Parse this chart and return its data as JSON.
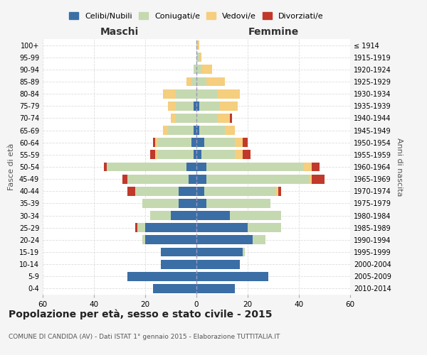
{
  "age_groups": [
    "0-4",
    "5-9",
    "10-14",
    "15-19",
    "20-24",
    "25-29",
    "30-34",
    "35-39",
    "40-44",
    "45-49",
    "50-54",
    "55-59",
    "60-64",
    "65-69",
    "70-74",
    "75-79",
    "80-84",
    "85-89",
    "90-94",
    "95-99",
    "100+"
  ],
  "birth_years": [
    "2010-2014",
    "2005-2009",
    "2000-2004",
    "1995-1999",
    "1990-1994",
    "1985-1989",
    "1980-1984",
    "1975-1979",
    "1970-1974",
    "1965-1969",
    "1960-1964",
    "1955-1959",
    "1950-1954",
    "1945-1949",
    "1940-1944",
    "1935-1939",
    "1930-1934",
    "1925-1929",
    "1920-1924",
    "1915-1919",
    "≤ 1914"
  ],
  "colors": {
    "celibi": "#3A6EA5",
    "coniugati": "#C5D9B0",
    "vedovi": "#F5CE7E",
    "divorziati": "#C0392B"
  },
  "males": {
    "celibi": [
      17,
      27,
      14,
      14,
      20,
      20,
      10,
      7,
      7,
      3,
      4,
      1,
      2,
      1,
      0,
      1,
      0,
      0,
      0,
      0,
      0
    ],
    "coniugati": [
      0,
      0,
      0,
      0,
      1,
      3,
      8,
      14,
      17,
      24,
      31,
      14,
      13,
      10,
      8,
      7,
      8,
      2,
      1,
      0,
      0
    ],
    "vedovi": [
      0,
      0,
      0,
      0,
      0,
      0,
      0,
      0,
      0,
      0,
      0,
      1,
      1,
      2,
      2,
      3,
      5,
      2,
      0,
      0,
      0
    ],
    "divorziati": [
      0,
      0,
      0,
      0,
      0,
      1,
      0,
      0,
      3,
      2,
      1,
      2,
      1,
      0,
      0,
      0,
      0,
      0,
      0,
      0,
      0
    ]
  },
  "females": {
    "celibi": [
      15,
      28,
      17,
      18,
      22,
      20,
      13,
      4,
      3,
      4,
      4,
      2,
      3,
      1,
      0,
      1,
      0,
      0,
      0,
      0,
      0
    ],
    "coniugati": [
      0,
      0,
      0,
      1,
      5,
      13,
      20,
      25,
      28,
      40,
      38,
      13,
      12,
      10,
      8,
      8,
      8,
      4,
      2,
      1,
      0
    ],
    "vedovi": [
      0,
      0,
      0,
      0,
      0,
      0,
      0,
      0,
      1,
      1,
      3,
      3,
      3,
      4,
      5,
      7,
      9,
      7,
      4,
      1,
      1
    ],
    "divorziati": [
      0,
      0,
      0,
      0,
      0,
      0,
      0,
      0,
      1,
      5,
      3,
      3,
      2,
      0,
      1,
      0,
      0,
      0,
      0,
      0,
      0
    ]
  },
  "xlim": 60,
  "title": "Popolazione per età, sesso e stato civile - 2015",
  "subtitle": "COMUNE DI CANDIDA (AV) - Dati ISTAT 1° gennaio 2015 - Elaborazione TUTTITALIA.IT",
  "xlabel_left": "Maschi",
  "xlabel_right": "Femmine",
  "ylabel_left": "Fasce di età",
  "ylabel_right": "Anni di nascita",
  "legend_labels": [
    "Celibi/Nubili",
    "Coniugati/e",
    "Vedovi/e",
    "Divorziati/e"
  ],
  "bg_color": "#f5f5f5",
  "plot_bg": "#ffffff"
}
